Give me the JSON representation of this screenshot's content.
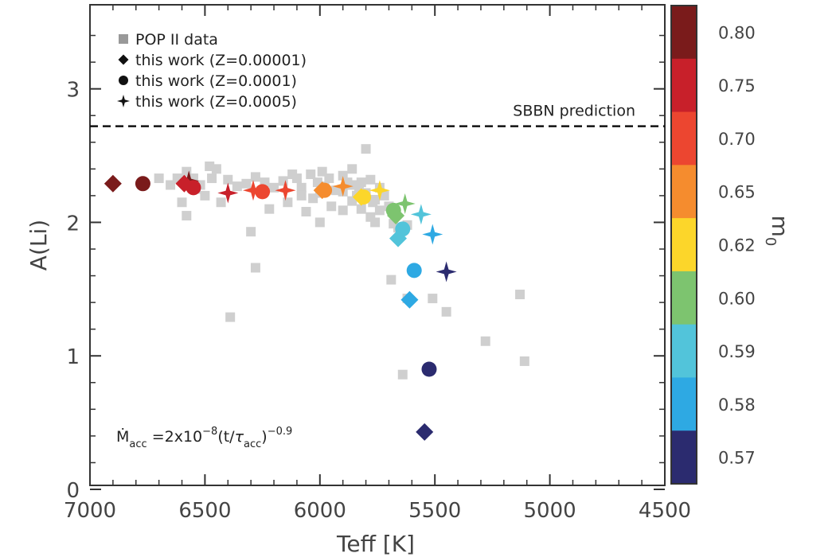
{
  "chart_data": {
    "type": "scatter",
    "xlabel": "Teff [K]",
    "ylabel": "A(Li)",
    "xlim": [
      7000,
      4500
    ],
    "ylim": [
      0,
      3.6
    ],
    "x_ticks": [
      "7000",
      "6500",
      "6000",
      "5500",
      "5000",
      "4500"
    ],
    "y_ticks": [
      "0",
      "1",
      "2",
      "3"
    ],
    "x_tick_values": [
      7000,
      6500,
      6000,
      5500,
      5000,
      4500
    ],
    "y_tick_values": [
      0,
      1,
      2,
      3
    ],
    "reference_line": {
      "label": "SBBN prediction",
      "y": 2.72,
      "style": "dashed"
    },
    "annotation": {
      "base": "Ṁ",
      "base_sub": "acc",
      "mid": " =2x10",
      "exp1": "−8",
      "mid2": "(t/",
      "tau": "τ",
      "tau_sub": "acc",
      "close": ")",
      "exp2": "−0.9"
    },
    "legend": [
      {
        "label": "POP II data",
        "marker": "square",
        "color": "#999999"
      },
      {
        "label": "this work (Z=0.00001)",
        "marker": "diamond",
        "color": "#111111"
      },
      {
        "label": "this work (Z=0.0001)",
        "marker": "circle",
        "color": "#111111"
      },
      {
        "label": "this work (Z=0.0005)",
        "marker": "star",
        "color": "#111111"
      }
    ],
    "colorbar": {
      "label": "m",
      "label_sub": "0",
      "levels": [
        "0.80",
        "0.75",
        "0.70",
        "0.65",
        "0.62",
        "0.60",
        "0.59",
        "0.58",
        "0.57"
      ],
      "colors": [
        "#7a1b1b",
        "#c8202a",
        "#ec4630",
        "#f58c2e",
        "#fcd62a",
        "#7dc46f",
        "#52c4da",
        "#2ea9e3",
        "#2b2b6f"
      ]
    },
    "pop2_data": [
      [
        6620,
        2.33
      ],
      [
        6580,
        2.38
      ],
      [
        6550,
        2.33
      ],
      [
        6520,
        2.28
      ],
      [
        6480,
        2.42
      ],
      [
        6450,
        2.4
      ],
      [
        6470,
        2.33
      ],
      [
        6400,
        2.32
      ],
      [
        6360,
        2.27
      ],
      [
        6320,
        2.29
      ],
      [
        6280,
        2.34
      ],
      [
        6240,
        2.3
      ],
      [
        6200,
        2.26
      ],
      [
        6160,
        2.31
      ],
      [
        6100,
        2.33
      ],
      [
        6080,
        2.26
      ],
      [
        6040,
        2.36
      ],
      [
        6010,
        2.3
      ],
      [
        5980,
        2.27
      ],
      [
        5960,
        2.33
      ],
      [
        5930,
        2.24
      ],
      [
        5900,
        2.23
      ],
      [
        5880,
        2.3
      ],
      [
        5860,
        2.28
      ],
      [
        5840,
        2.2
      ],
      [
        5820,
        2.3
      ],
      [
        5800,
        2.22
      ],
      [
        5780,
        2.32
      ],
      [
        5760,
        2.17
      ],
      [
        5740,
        2.26
      ],
      [
        5720,
        2.2
      ],
      [
        5700,
        2.12
      ],
      [
        5800,
        2.55
      ],
      [
        6700,
        2.33
      ],
      [
        6650,
        2.28
      ],
      [
        6600,
        2.15
      ],
      [
        6580,
        2.05
      ],
      [
        6430,
        2.15
      ],
      [
        6300,
        1.93
      ],
      [
        6280,
        1.66
      ],
      [
        6390,
        1.29
      ],
      [
        6220,
        2.1
      ],
      [
        6140,
        2.15
      ],
      [
        6060,
        2.08
      ],
      [
        6000,
        2.0
      ],
      [
        5900,
        2.09
      ],
      [
        5860,
        2.16
      ],
      [
        5820,
        2.1
      ],
      [
        5780,
        2.04
      ],
      [
        5760,
        2.0
      ],
      [
        5740,
        2.09
      ],
      [
        5680,
        1.99
      ],
      [
        5660,
        1.96
      ],
      [
        5620,
        1.98
      ],
      [
        5690,
        1.57
      ],
      [
        5620,
        1.43
      ],
      [
        5510,
        1.43
      ],
      [
        5450,
        1.33
      ],
      [
        5640,
        0.86
      ],
      [
        5280,
        1.11
      ],
      [
        5130,
        1.46
      ],
      [
        5110,
        0.96
      ],
      [
        6080,
        2.2
      ],
      [
        6030,
        2.18
      ],
      [
        5950,
        2.12
      ],
      [
        6500,
        2.2
      ],
      [
        6540,
        2.25
      ],
      [
        5990,
        2.38
      ],
      [
        5900,
        2.35
      ],
      [
        6120,
        2.36
      ],
      [
        5860,
        2.4
      ],
      [
        5830,
        2.25
      ],
      [
        6000,
        2.22
      ],
      [
        5770,
        2.15
      ]
    ],
    "z00001_diamonds": [
      {
        "x": 6900,
        "y": 2.29,
        "m0": "0.80"
      },
      {
        "x": 6590,
        "y": 2.29,
        "m0": "0.75"
      },
      {
        "x": 5990,
        "y": 2.24,
        "m0": "0.65"
      },
      {
        "x": 5820,
        "y": 2.19,
        "m0": "0.62"
      },
      {
        "x": 5670,
        "y": 2.05,
        "m0": "0.60"
      },
      {
        "x": 5660,
        "y": 1.88,
        "m0": "0.59"
      },
      {
        "x": 5610,
        "y": 1.42,
        "m0": "0.58"
      },
      {
        "x": 5545,
        "y": 0.43,
        "m0": "0.57"
      }
    ],
    "z0001_circles": [
      {
        "x": 6770,
        "y": 2.29,
        "m0": "0.80"
      },
      {
        "x": 6550,
        "y": 2.26,
        "m0": "0.75"
      },
      {
        "x": 6250,
        "y": 2.23,
        "m0": "0.70"
      },
      {
        "x": 5980,
        "y": 2.24,
        "m0": "0.65"
      },
      {
        "x": 5810,
        "y": 2.19,
        "m0": "0.62"
      },
      {
        "x": 5680,
        "y": 2.09,
        "m0": "0.60"
      },
      {
        "x": 5640,
        "y": 1.95,
        "m0": "0.59"
      },
      {
        "x": 5590,
        "y": 1.64,
        "m0": "0.58"
      },
      {
        "x": 5525,
        "y": 0.9,
        "m0": "0.57"
      }
    ],
    "z0005_stars": [
      {
        "x": 6570,
        "y": 2.31,
        "m0": "0.80"
      },
      {
        "x": 6400,
        "y": 2.22,
        "m0": "0.75"
      },
      {
        "x": 6290,
        "y": 2.24,
        "m0": "0.70"
      },
      {
        "x": 6150,
        "y": 2.24,
        "m0": "0.70"
      },
      {
        "x": 5900,
        "y": 2.27,
        "m0": "0.65"
      },
      {
        "x": 5740,
        "y": 2.24,
        "m0": "0.62"
      },
      {
        "x": 5630,
        "y": 2.14,
        "m0": "0.60"
      },
      {
        "x": 5560,
        "y": 2.06,
        "m0": "0.59"
      },
      {
        "x": 5510,
        "y": 1.91,
        "m0": "0.58"
      },
      {
        "x": 5450,
        "y": 1.63,
        "m0": "0.57"
      }
    ]
  }
}
